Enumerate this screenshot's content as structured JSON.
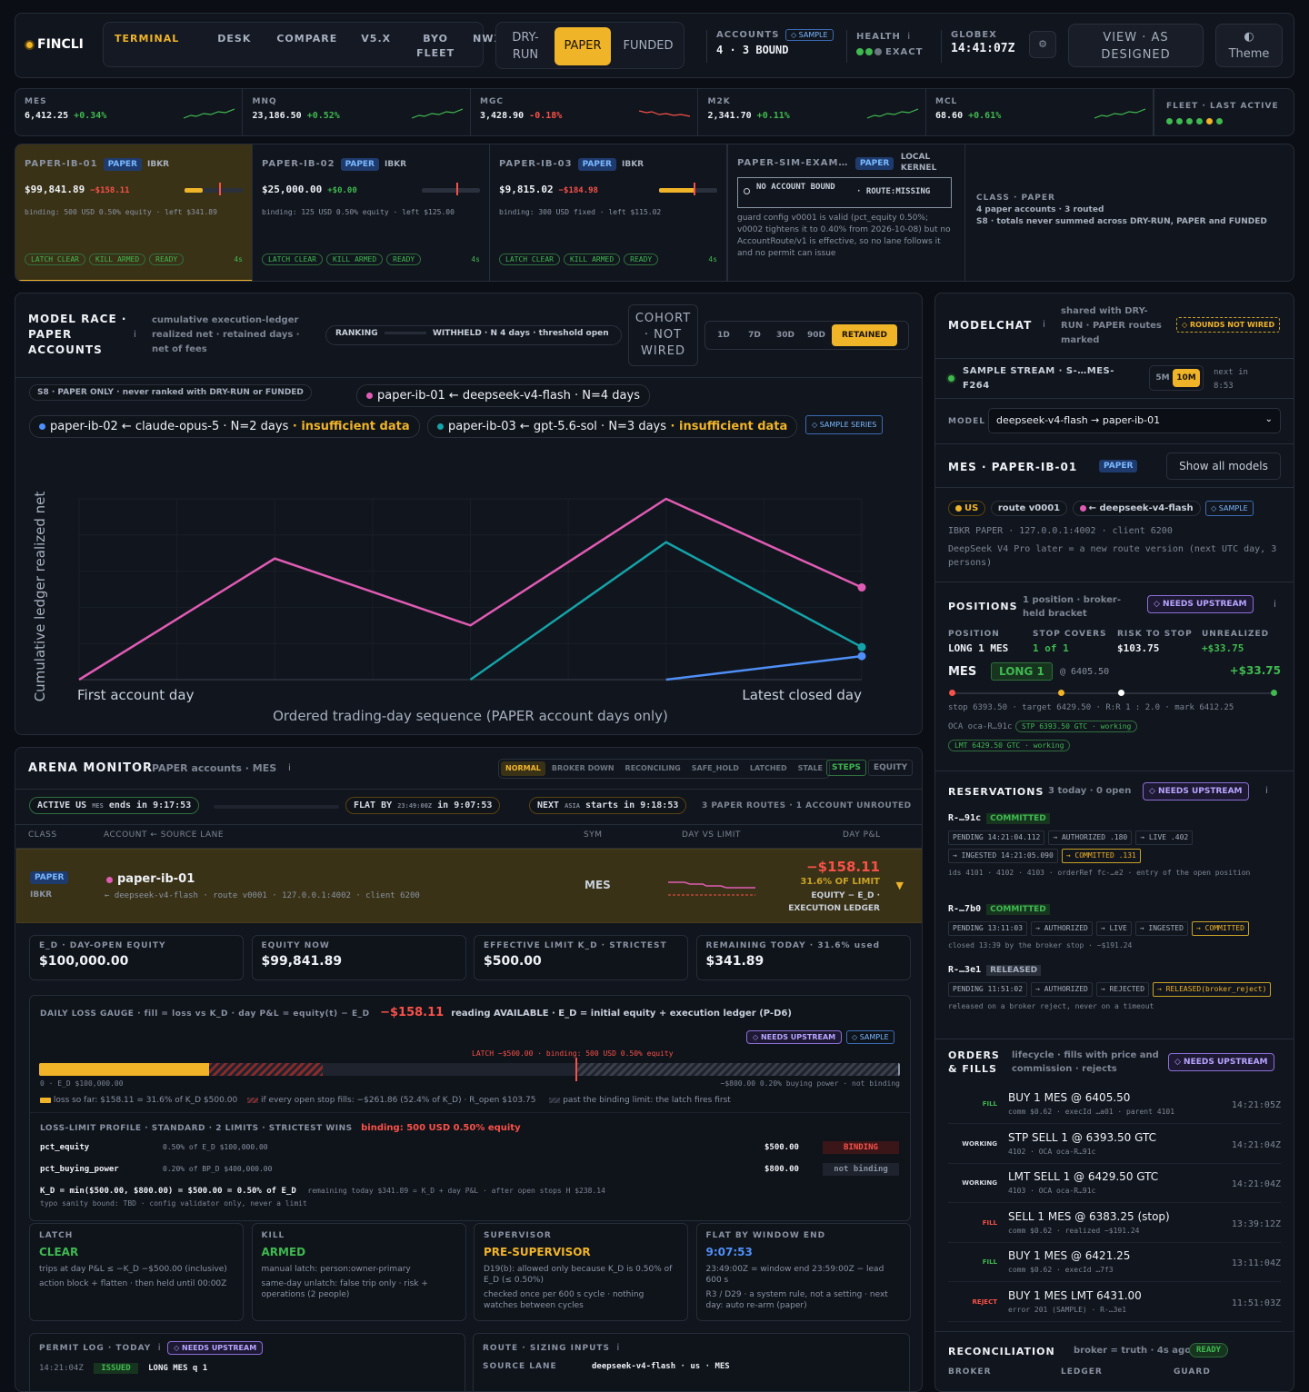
{
  "brand": "FINCLI",
  "nav": [
    "TERMINAL",
    "DESK",
    "COMPARE",
    "V5.X",
    "BYO FLEET",
    "NWX"
  ],
  "modes": [
    "DRY-RUN",
    "PAPER",
    "FUNDED"
  ],
  "accounts": {
    "label": "ACCOUNTS",
    "badge": "◇ SAMPLE",
    "value": "4 · 3 BOUND"
  },
  "health": {
    "label": "HEALTH",
    "value": "EXACT"
  },
  "globex": {
    "label": "GLOBEX",
    "time": "14:41:07Z"
  },
  "view_btn": "VIEW · AS DESIGNED",
  "theme_btn": "Theme",
  "tickers": [
    {
      "sym": "MES",
      "price": "6,412.25",
      "chg": "+0.34%",
      "dir": "up"
    },
    {
      "sym": "MNQ",
      "price": "23,186.50",
      "chg": "+0.52%",
      "dir": "up"
    },
    {
      "sym": "MGC",
      "price": "3,428.90",
      "chg": "-0.18%",
      "dir": "down"
    },
    {
      "sym": "M2K",
      "price": "2,341.70",
      "chg": "+0.11%",
      "dir": "up"
    },
    {
      "sym": "MCL",
      "price": "68.60",
      "chg": "+0.61%",
      "dir": "up"
    }
  ],
  "fleet": "FLEET · LAST ACTIVE",
  "account_cards": [
    {
      "id": "PAPER-IB-01",
      "tag": "PAPER",
      "broker": "IBKR",
      "equity": "$99,841.89",
      "pnl": "−$158.11",
      "binding": "binding: 500 USD 0.50% equity · left $341.89",
      "chips": [
        "LATCH CLEAR",
        "KILL ARMED",
        "READY"
      ],
      "age": "4s",
      "fill": 0.32
    },
    {
      "id": "PAPER-IB-02",
      "tag": "PAPER",
      "broker": "IBKR",
      "equity": "$25,000.00",
      "pnl": "+$0.00",
      "binding": "binding: 125 USD 0.50% equity · left $125.00",
      "chips": [
        "LATCH CLEAR",
        "KILL ARMED",
        "READY"
      ],
      "age": "4s",
      "fill": 0
    },
    {
      "id": "PAPER-IB-03",
      "tag": "PAPER",
      "broker": "IBKR",
      "equity": "$9,815.02",
      "pnl": "−$184.98",
      "binding": "binding: 300 USD fixed · left $115.02",
      "chips": [
        "LATCH CLEAR",
        "KILL ARMED",
        "READY"
      ],
      "age": "4s",
      "fill": 0.62
    }
  ],
  "sim_card": {
    "id": "PAPER-SIM-EXAM…",
    "tag": "PAPER",
    "kernel": "LOCAL KERNEL",
    "no_acct": "NO ACCOUNT BOUND",
    "route": "· ROUTE:MISSING",
    "note": "guard config v0001 is valid (pct_equity 0.50%; v0002 tightens it to 0.40% from 2026-10-08) but no AccountRoute/v1 is effective, so no lane follows it and no permit can issue"
  },
  "class_card": {
    "title": "CLASS · PAPER",
    "line1": "4 paper accounts · 3 routed",
    "line2": "S8 · totals never summed across DRY-RUN, PAPER and FUNDED"
  },
  "race": {
    "title": "MODEL RACE · PAPER ACCOUNTS",
    "sub": "cumulative execution-ledger realized net · retained days · net of fees",
    "ranking": "RANKING",
    "withheld": "WITHHELD · N 4 days · threshold open",
    "cohort": "COHORT · NOT WIRED",
    "ranges": [
      "1D",
      "7D",
      "30D",
      "90D",
      "RETAINED"
    ],
    "s8": "S8 · PAPER ONLY · never ranked with DRY-RUN or FUNDED",
    "legend": [
      {
        "text": "paper-ib-01 ← deepseek-v4-flash · N=4 days",
        "extra": "",
        "color": "#e05cb4"
      },
      {
        "text": "paper-ib-02 ← claude-opus-5 · N=2 days",
        "extra": " · insufficient data",
        "color": "#4f8ff7"
      },
      {
        "text": "paper-ib-03 ← gpt-5.6-sol · N=3 days",
        "extra": " · insufficient data",
        "color": "#14a3a8"
      }
    ],
    "sample_series": "◇ SAMPLE SERIES"
  },
  "chart_data": {
    "type": "line",
    "ylabel": "Cumulative ledger realized net",
    "xlabel": "Ordered trading-day sequence (PAPER account days only)",
    "x_first": "First account day",
    "x_last": "Latest closed day",
    "x": [
      0,
      1,
      2,
      3,
      4
    ],
    "series": [
      {
        "name": "paper-ib-01 ← deepseek-v4-flash",
        "values": [
          0,
          0.67,
          0.3,
          1,
          0.51
        ],
        "color": "#e05cb4"
      },
      {
        "name": "paper-ib-03 ← gpt-5.6-sol",
        "values": [
          null,
          null,
          0,
          0.76,
          0.18
        ],
        "color": "#14a3a8"
      },
      {
        "name": "paper-ib-02 ← claude-opus-5",
        "values": [
          null,
          null,
          null,
          0,
          0.13
        ],
        "color": "#4f8ff7"
      }
    ]
  },
  "arena": {
    "title": "ARENA MONITOR",
    "sub": "PAPER accounts · MES",
    "states": [
      "NORMAL",
      "BROKER DOWN",
      "RECONCILING",
      "SAFE_HOLD",
      "LATCHED",
      "STALE"
    ],
    "steps": "STEPS",
    "equity": "EQUITY",
    "active": "ACTIVE US",
    "active_sub": "MES",
    "active_end": "ends in 9:17:53",
    "flat": "FLAT BY",
    "flat_sub": "23:49:00Z",
    "flat_in": "in 9:07:53",
    "next": "NEXT",
    "next_sub": "ASIA",
    "next_in": "starts in 9:18:53",
    "routes": "3 PAPER ROUTES · 1 ACCOUNT UNROUTED",
    "cols": [
      "CLASS",
      "ACCOUNT ← SOURCE LANE",
      "SYM",
      "DAY VS LIMIT",
      "DAY P&L"
    ],
    "row": {
      "tag": "PAPER",
      "broker": "IBKR",
      "name": "paper-ib-01",
      "detail": "← deepseek-v4-flash · route v0001 · 127.0.0.1:4002 · client 6200",
      "sym": "MES",
      "pnl": "−$158.11",
      "pct": "31.6% OF LIMIT",
      "src": "EQUITY − E_D · EXECUTION LEDGER"
    },
    "stats": [
      {
        "l": "E_D · DAY-OPEN EQUITY",
        "v": "$100,000.00"
      },
      {
        "l": "EQUITY NOW",
        "v": "$99,841.89"
      },
      {
        "l": "EFFECTIVE LIMIT K_D · STRICTEST",
        "v": "$500.00"
      },
      {
        "l": "REMAINING TODAY · 31.6% used",
        "v": "$341.89"
      }
    ]
  },
  "gauge": {
    "title": "DAILY LOSS GAUGE · fill = loss vs K_D · day P&L = equity(t) − E_D",
    "pnl": "−$158.11",
    "reading": "reading AVAILABLE · E_D = initial equity + execution ledger (P-D6)",
    "needs": "◇ NEEDS UPSTREAM",
    "sample": "◇ SAMPLE",
    "latch": "LATCH −$500.00 · binding: 500 USD 0.50% equity",
    "left": "0 · E_D $100,000.00",
    "right": "−$800.00 0.20% buying power · not binding",
    "fill": 0.198,
    "stop_fill": 0.33,
    "leg1": "loss so far: $158.11 = 31.6% of K_D $500.00",
    "leg2": "if every open stop fills: −$261.86 (52.4% of K_D) · R_open $103.75",
    "leg3": "past the binding limit: the latch fires first",
    "profile_title": "LOSS-LIMIT PROFILE · STANDARD · 2 LIMITS · STRICTEST WINS",
    "profile_bind": "binding: 500 USD 0.50% equity",
    "limits": [
      {
        "n": "pct_equity",
        "d": "0.50% of E_D $100,000.00",
        "v": "$500.00",
        "s": "BINDING"
      },
      {
        "n": "pct_buying_power",
        "d": "0.20% of BP_D $400,000.00",
        "v": "$800.00",
        "s": "not binding"
      }
    ],
    "kd": "K_D = min($500.00, $800.00) = $500.00 = 0.50% of E_D",
    "kd_note": "remaining today $341.89 = K_D + day P&L · after open stops H $238.14",
    "typo": "typo sanity bound: TBD · config validator only, never a limit"
  },
  "controls": [
    {
      "l": "LATCH",
      "v": "CLEAR",
      "c": "#3fb950",
      "t1": "trips at day P&L ≤ −K_D −$500.00 (inclusive)",
      "t2": "action block + flatten · then held until 00:00Z"
    },
    {
      "l": "KILL",
      "v": "ARMED",
      "c": "#3fb950",
      "t1": "manual latch: person:owner-primary",
      "t2": "same-day unlatch: false trip only · risk + operations (2 people)"
    },
    {
      "l": "SUPERVISOR",
      "v": "PRE-SUPERVISOR",
      "c": "#f0b429",
      "t1": "D19(b): allowed only because K_D is 0.50% of E_D (≤ 0.50%)",
      "t2": "checked once per 600 s cycle · nothing watches between cycles"
    },
    {
      "l": "FLAT BY WINDOW END",
      "v": "9:07:53",
      "c": "#4f8ff7",
      "t1": "23:49:00Z = window end 23:59:00Z − lead 600 s",
      "t2": "R3 / D29 · a system rule, not a setting · next day: auto re-arm (paper)"
    }
  ],
  "permit": {
    "title": "PERMIT LOG · TODAY",
    "needs": "◇ NEEDS UPSTREAM",
    "time": "14:21:04Z",
    "status": "ISSUED",
    "text": "LONG MES q 1"
  },
  "route": {
    "title": "ROUTE · SIZING INPUTS",
    "k": "SOURCE LANE",
    "v": "deepseek-v4-flash · us · MES"
  },
  "chat": {
    "title": "MODELCHAT",
    "sub": "shared with DRY-RUN · PAPER routes marked",
    "rounds": "◇ ROUNDS NOT WIRED",
    "stream": "SAMPLE STREAM · S-…MES-F264",
    "r5": "5M",
    "r10": "10M",
    "next": "next in 8:53",
    "model_lbl": "MODEL",
    "model_val": "deepseek-v4-flash → paper-ib-01"
  },
  "mes": {
    "title": "MES · PAPER-IB-01",
    "tag": "PAPER",
    "show": "Show all models",
    "us": "US",
    "route": "route v0001",
    "model": "← deepseek-v4-flash",
    "sample": "◇ SAMPLE",
    "info1": "IBKR PAPER · 127.0.0.1:4002 · client 6200",
    "info2": "DeepSeek V4 Pro later = a new route version (next UTC day, 3 persons)"
  },
  "positions": {
    "title": "POSITIONS",
    "sub": "1 position · broker-held bracket",
    "needs": "◇ NEEDS UPSTREAM",
    "cols": [
      {
        "l": "POSITION",
        "v": "LONG 1 MES",
        "c": "#eef1f6"
      },
      {
        "l": "STOP COVERS",
        "v": "1 of 1",
        "c": "#3fb950"
      },
      {
        "l": "RISK TO STOP",
        "v": "$103.75",
        "c": "#eef1f6"
      },
      {
        "l": "UNREALIZED",
        "v": "+$33.75",
        "c": "#3fb950"
      }
    ],
    "sym": "MES",
    "side": "LONG 1",
    "at": "@ 6405.50",
    "pnl": "+$33.75",
    "levels": "stop 6393.50 · target 6429.50 · R:R 1 : 2.0 · mark 6412.25",
    "oca": "OCA oca-R…91c",
    "stp": "STP 6393.50 GTC · working",
    "lmt": "LMT 6429.50 GTC · working"
  },
  "reservations": {
    "title": "RESERVATIONS",
    "sub": "3 today · 0 open",
    "needs": "◇ NEEDS UPSTREAM",
    "items": [
      {
        "id": "R-…91c",
        "st": "COMMITTED",
        "steps": [
          "PENDING 14:21:04.112",
          "→ AUTHORIZED .180",
          "→ LIVE .402",
          "→ INGESTED 14:21:05.090",
          "→ COMMITTED .131"
        ],
        "note": "ids 4101 · 4102 · 4103 · orderRef fc-…e2 · entry of the open position"
      },
      {
        "id": "R-…7b0",
        "st": "COMMITTED",
        "steps": [
          "PENDING 13:11:03",
          "→ AUTHORIZED",
          "→ LIVE",
          "→ INGESTED",
          "→ COMMITTED"
        ],
        "note": "closed 13:39 by the broker stop · −$191.24"
      },
      {
        "id": "R-…3e1",
        "st": "RELEASED",
        "steps": [
          "PENDING 11:51:02",
          "→ AUTHORIZED",
          "→ REJECTED",
          "→ RELEASED(broker_reject)"
        ],
        "note": "released on a broker reject, never on a timeout"
      }
    ]
  },
  "orders": {
    "title": "ORDERS & FILLS",
    "sub": "lifecycle · fills with price and commission · rejects",
    "needs": "◇ NEEDS UPSTREAM",
    "items": [
      {
        "k": "FILL",
        "c": "#3fb950",
        "t": "BUY 1 MES @ 6405.50",
        "s": "comm $0.62 · execId …a01 · parent 4101",
        "time": "14:21:05Z"
      },
      {
        "k": "WORKING",
        "c": "#d6dbe4",
        "t": "STP SELL 1 @ 6393.50 GTC",
        "s": "4102 · OCA oca-R…91c",
        "time": "14:21:04Z"
      },
      {
        "k": "WORKING",
        "c": "#d6dbe4",
        "t": "LMT SELL 1 @ 6429.50 GTC",
        "s": "4103 · OCA oca-R…91c",
        "time": "14:21:04Z"
      },
      {
        "k": "FILL",
        "c": "#f85149",
        "t": "SELL 1 MES @ 6383.25 (stop)",
        "s": "comm $0.62 · realized −$191.24",
        "time": "13:39:12Z"
      },
      {
        "k": "FILL",
        "c": "#3fb950",
        "t": "BUY 1 MES @ 6421.25",
        "s": "comm $0.62 · execId …7f3",
        "time": "13:11:04Z"
      },
      {
        "k": "REJECT",
        "c": "#f85149",
        "t": "BUY 1 MES LMT 6431.00",
        "s": "error 201 (SAMPLE) · R-…3e1",
        "time": "11:51:03Z"
      }
    ]
  },
  "recon": {
    "title": "RECONCILIATION",
    "sub": "broker = truth · 4s ago",
    "status": "READY",
    "cols": [
      "BROKER",
      "LEDGER",
      "GUARD"
    ]
  }
}
